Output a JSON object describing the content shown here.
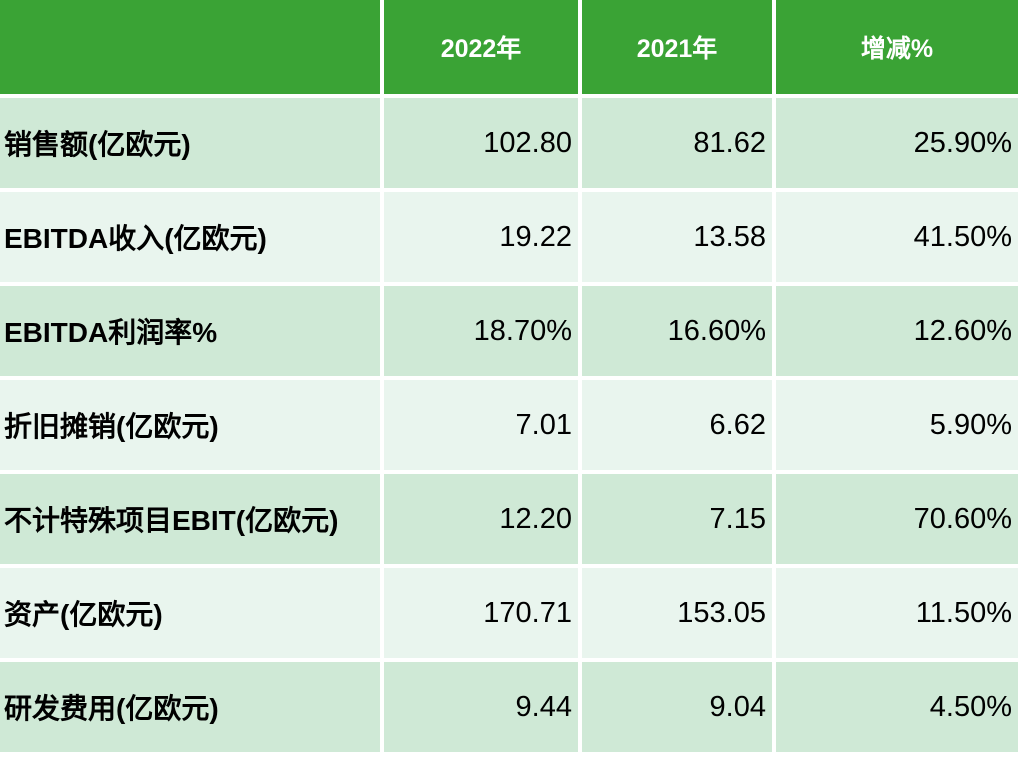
{
  "table": {
    "corner_label": "",
    "columns": [
      "2022年",
      "2021年",
      "增减%"
    ],
    "rows": [
      {
        "label": "销售额(亿欧元)",
        "values": [
          "102.80",
          "81.62",
          "25.90%"
        ]
      },
      {
        "label": "EBITDA收入(亿欧元)",
        "values": [
          "19.22",
          "13.58",
          "41.50%"
        ]
      },
      {
        "label": "EBITDA利润率%",
        "values": [
          "18.70%",
          "16.60%",
          "12.60%"
        ]
      },
      {
        "label": "折旧摊销(亿欧元)",
        "values": [
          "7.01",
          "6.62",
          "5.90%"
        ]
      },
      {
        "label": "不计特殊项目EBIT(亿欧元)",
        "values": [
          "12.20",
          "7.15",
          "70.60%"
        ]
      },
      {
        "label": "资产(亿欧元)",
        "values": [
          "170.71",
          "153.05",
          "11.50%"
        ]
      },
      {
        "label": "研发费用(亿欧元)",
        "values": [
          "9.44",
          "9.04",
          "4.50%"
        ]
      }
    ],
    "colors": {
      "header_bg": "#3aa335",
      "header_text": "#ffffff",
      "row_odd_bg": "#cfe9d6",
      "row_even_bg": "#e9f5ee",
      "body_text": "#000000"
    }
  },
  "chart_data": {
    "type": "table",
    "title": "",
    "columns": [
      "",
      "2022年",
      "2021年",
      "增减%"
    ],
    "rows": [
      [
        "销售额(亿欧元)",
        102.8,
        81.62,
        "25.90%"
      ],
      [
        "EBITDA收入(亿欧元)",
        19.22,
        13.58,
        "41.50%"
      ],
      [
        "EBITDA利润率%",
        "18.70%",
        "16.60%",
        "12.60%"
      ],
      [
        "折旧摊销(亿欧元)",
        7.01,
        6.62,
        "5.90%"
      ],
      [
        "不计特殊项目EBIT(亿欧元)",
        12.2,
        7.15,
        "70.60%"
      ],
      [
        "资产(亿欧元)",
        170.71,
        153.05,
        "11.50%"
      ],
      [
        "研发费用(亿欧元)",
        9.44,
        9.04,
        "4.50%"
      ]
    ],
    "layout_hints": {
      "header_fill": "#3aa335",
      "banded_rows": true,
      "value_alignment": "right",
      "label_alignment": "left"
    }
  }
}
